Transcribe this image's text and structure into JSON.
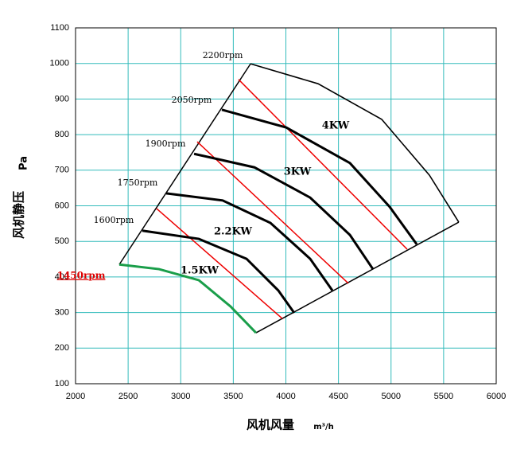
{
  "chart_data": {
    "type": "line",
    "y_label": "风机静压",
    "y_unit": "Pa",
    "x_label": "风机风量",
    "x_unit": "m³/h",
    "xlim": [
      2000,
      6000
    ],
    "xticks": [
      2000,
      2500,
      3000,
      3500,
      4000,
      4500,
      5000,
      5500,
      6000
    ],
    "ylim": [
      100,
      1100
    ],
    "yticks": [
      100,
      200,
      300,
      400,
      500,
      600,
      700,
      800,
      900,
      1000,
      1100
    ],
    "grid": true,
    "grid_color": "#33bbbb",
    "series": [
      {
        "name": "1450rpm",
        "color": "#1a9e4a",
        "x": [
          2416,
          2794,
          3172,
          3474,
          3716
        ],
        "values": [
          435,
          422,
          391,
          317,
          243
        ]
      },
      {
        "name": "1600rpm",
        "color": "#000000",
        "x": [
          2635,
          3172,
          3626,
          3928,
          4079
        ],
        "values": [
          530,
          507,
          451,
          362,
          299
        ]
      },
      {
        "name": "1750rpm",
        "color": "#000000",
        "x": [
          2862,
          3399,
          3853,
          4231,
          4442
        ],
        "values": [
          635,
          615,
          552,
          451,
          362
        ]
      },
      {
        "name": "1900rpm",
        "color": "#000000",
        "x": [
          3127,
          3701,
          4231,
          4609,
          4828
        ],
        "values": [
          746,
          708,
          623,
          518,
          422
        ]
      },
      {
        "name": "2050rpm",
        "color": "#000000",
        "x": [
          3391,
          4004,
          4609,
          4987,
          5244
        ],
        "values": [
          870,
          820,
          720,
          597,
          492
        ]
      },
      {
        "name": "2200rpm",
        "color": "#000000",
        "x": [
          3664,
          4306,
          4911,
          5365,
          5644
        ],
        "values": [
          999,
          943,
          843,
          686,
          554
        ]
      }
    ],
    "power_color": "#ee0000",
    "power_lines": [
      {
        "x": [
          3550,
          5153
        ],
        "values": [
          955,
          478
        ]
      },
      {
        "x": [
          3157,
          4594
        ],
        "values": [
          780,
          382
        ]
      },
      {
        "x": [
          2771,
          3966
        ],
        "values": [
          592,
          283
        ]
      }
    ],
    "power_labels": [
      "4KW",
      "3KW",
      "2.2KW",
      "1.5KW"
    ]
  }
}
